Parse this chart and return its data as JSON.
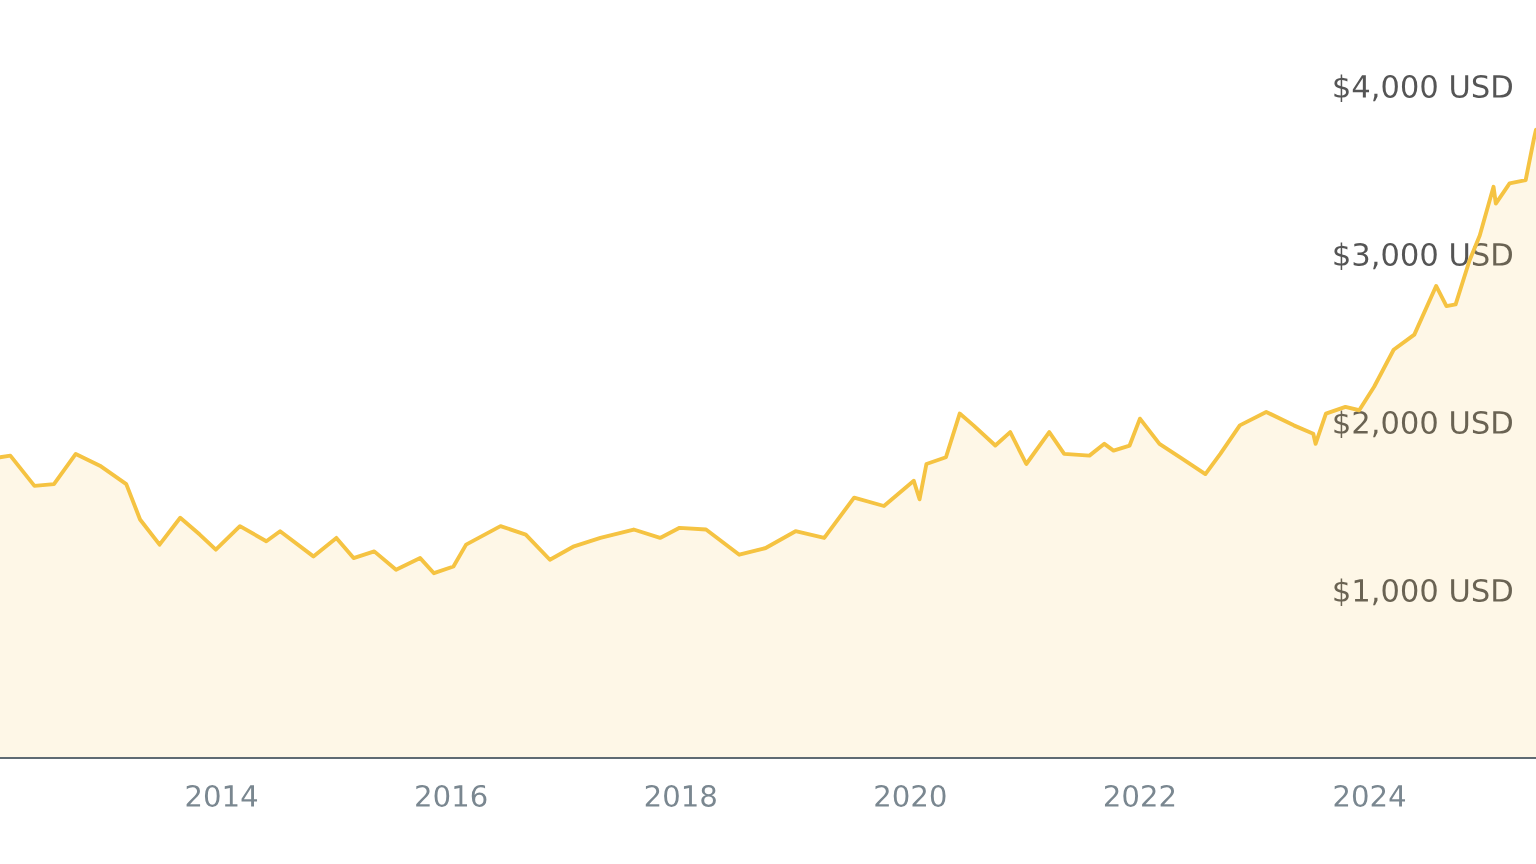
{
  "chart_data": {
    "type": "area",
    "xlim": [
      2012.07,
      2025.45
    ],
    "xticks": [
      2014,
      2016,
      2018,
      2020,
      2022,
      2024
    ],
    "ylim": [
      0,
      4000
    ],
    "yticks": [
      {
        "value": 1000,
        "label": "$1,000 USD"
      },
      {
        "value": 2000,
        "label": "$2,000 USD"
      },
      {
        "value": 3000,
        "label": "$3,000 USD"
      },
      {
        "value": 4000,
        "label": "$4,000 USD"
      }
    ],
    "grid": false,
    "legend": false,
    "series": [
      {
        "color": "#f5c342",
        "x": [
          2012.07,
          2012.16,
          2012.37,
          2012.54,
          2012.73,
          2012.94,
          2013.17,
          2013.29,
          2013.46,
          2013.64,
          2013.81,
          2013.95,
          2014.16,
          2014.39,
          2014.51,
          2014.8,
          2015.0,
          2015.15,
          2015.33,
          2015.52,
          2015.73,
          2015.85,
          2016.02,
          2016.13,
          2016.43,
          2016.65,
          2016.86,
          2017.07,
          2017.3,
          2017.59,
          2017.82,
          2017.99,
          2018.22,
          2018.51,
          2018.74,
          2019.0,
          2019.25,
          2019.51,
          2019.77,
          2020.03,
          2020.08,
          2020.14,
          2020.31,
          2020.43,
          2020.55,
          2020.74,
          2020.87,
          2021.01,
          2021.21,
          2021.34,
          2021.56,
          2021.69,
          2021.77,
          2021.91,
          2022.0,
          2022.17,
          2022.35,
          2022.57,
          2022.7,
          2022.87,
          2023.1,
          2023.34,
          2023.51,
          2023.53,
          2023.62,
          2023.79,
          2023.91,
          2024.04,
          2024.21,
          2024.39,
          2024.58,
          2024.67,
          2024.75,
          2024.87,
          2024.96,
          2025.08,
          2025.1,
          2025.22,
          2025.36,
          2025.43,
          2025.45
        ],
        "values": [
          1790,
          1800,
          1620,
          1630,
          1810,
          1740,
          1630,
          1420,
          1270,
          1430,
          1330,
          1240,
          1380,
          1290,
          1350,
          1200,
          1310,
          1190,
          1230,
          1120,
          1190,
          1100,
          1140,
          1270,
          1380,
          1330,
          1180,
          1260,
          1310,
          1360,
          1310,
          1370,
          1360,
          1210,
          1250,
          1350,
          1310,
          1550,
          1500,
          1650,
          1540,
          1750,
          1790,
          2050,
          1980,
          1860,
          1940,
          1750,
          1940,
          1810,
          1800,
          1870,
          1830,
          1860,
          2020,
          1870,
          1790,
          1690,
          1810,
          1980,
          2060,
          1980,
          1930,
          1870,
          2050,
          2090,
          2070,
          2210,
          2430,
          2520,
          2810,
          2690,
          2700,
          2960,
          3110,
          3400,
          3300,
          3420,
          3440,
          3680,
          3740
        ]
      }
    ]
  }
}
